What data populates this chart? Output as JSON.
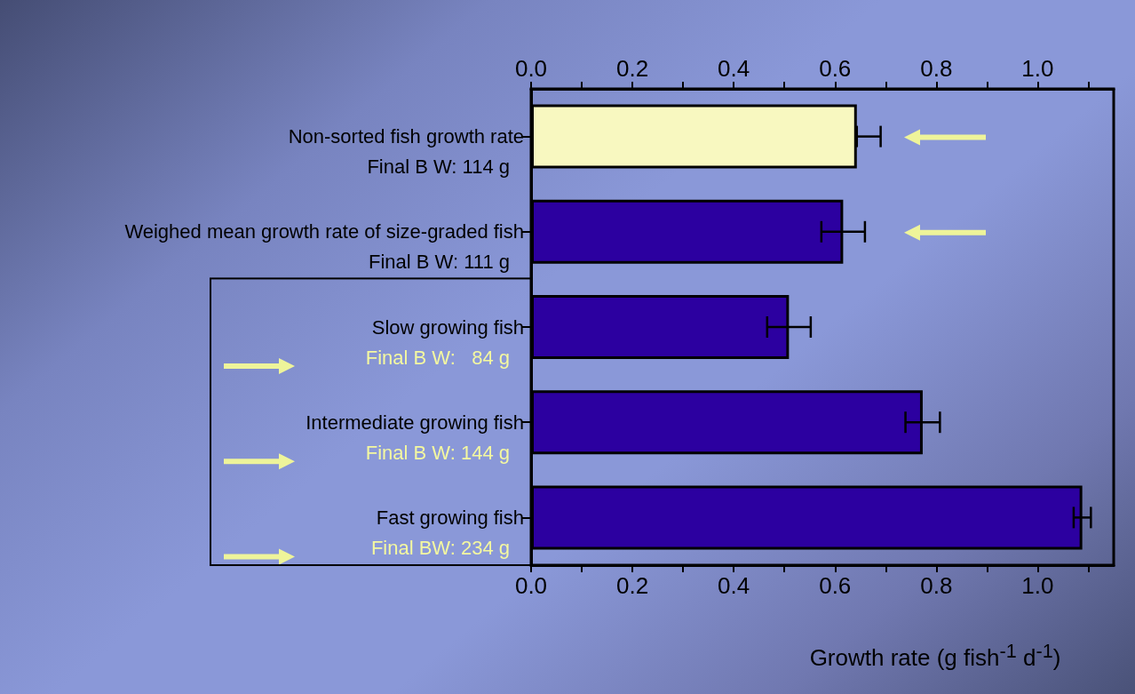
{
  "chart_data": {
    "type": "bar",
    "orientation": "horizontal",
    "xlabel": "Growth rate (g fish$^{-1}$ d$^{-1}$)",
    "categories": [
      "Non-sorted fish growth rate\nFinal B W: 114 g",
      "Weighed mean growth rate of size-graded fish\nFinal B W: 111 g",
      "Slow growing fish\nFinal B W:   84 g",
      "Intermediate growing fish\nFinal B W: 144 g",
      "Fast growing fish\nFinal BW: 234 g"
    ],
    "values": [
      0.643,
      0.616,
      0.509,
      0.773,
      1.088
    ],
    "colors": [
      "#f8f8c0",
      "#2c00a0",
      "#2c00a0",
      "#2c00a0",
      "#2c00a0"
    ],
    "errors": [
      [
        0.643,
        0.69
      ],
      0.043,
      0.043,
      0.034,
      0.017
    ],
    "xlim": [
      0,
      1.15
    ],
    "xticks": [
      {
        "value": 0,
        "label": "0.0"
      },
      {
        "value": 0.1,
        "label": null
      },
      {
        "value": 0.2,
        "label": "0.2"
      },
      {
        "value": 0.3,
        "label": null
      },
      {
        "value": 0.4,
        "label": "0.4"
      },
      {
        "value": 0.5,
        "label": null
      },
      {
        "value": 0.6,
        "label": "0.6"
      },
      {
        "value": 0.7,
        "label": null
      },
      {
        "value": 0.8,
        "label": "0.8"
      },
      {
        "value": 0.9,
        "label": null
      },
      {
        "value": 1,
        "label": "1.0"
      },
      {
        "value": 1.1,
        "label": null
      }
    ],
    "x2lim": [
      0,
      1.15
    ],
    "x2ticks": [
      {
        "value": 0,
        "label": "0.0"
      },
      {
        "value": 0.1,
        "label": null
      },
      {
        "value": 0.2,
        "label": "0.2"
      },
      {
        "value": 0.3,
        "label": null
      },
      {
        "value": 0.4,
        "label": "0.4"
      },
      {
        "value": 0.5,
        "label": null
      },
      {
        "value": 0.6,
        "label": "0.6"
      },
      {
        "value": 0.7,
        "label": null
      },
      {
        "value": 0.8,
        "label": "0.8"
      },
      {
        "value": 0.9,
        "label": null
      },
      {
        "value": 1,
        "label": "1.0"
      },
      {
        "value": 1.1,
        "label": null
      }
    ],
    "grid": false
  }
}
